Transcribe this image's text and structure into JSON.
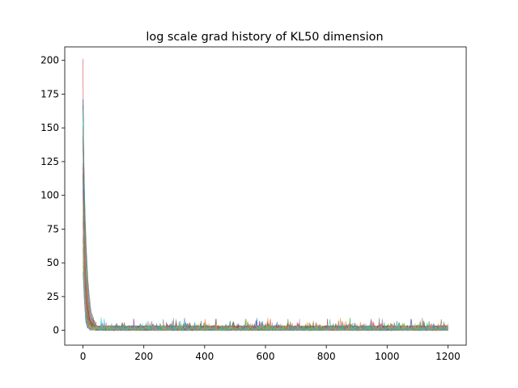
{
  "chart_data": {
    "type": "line",
    "title": "log scale grad history of KL50 dimension",
    "xlabel": "",
    "ylabel": "",
    "xlim": [
      -60,
      1260
    ],
    "ylim": [
      -11,
      210
    ],
    "x_ticks": [
      0,
      200,
      400,
      600,
      800,
      1000,
      1200
    ],
    "y_ticks": [
      0,
      25,
      50,
      75,
      100,
      125,
      150,
      175,
      200
    ],
    "x_tick_labels": [
      "0",
      "200",
      "400",
      "600",
      "800",
      "1000",
      "1200"
    ],
    "y_tick_labels": [
      "0",
      "25",
      "50",
      "75",
      "100",
      "125",
      "150",
      "175",
      "200"
    ],
    "grid": false,
    "legend": "none",
    "num_series": 50,
    "num_steps": 1201,
    "description_values": {
      "initial_max": 199,
      "secondary_peak": 48,
      "steady_state_range": [
        0,
        10
      ]
    },
    "series_colors": [
      "#1f77b4",
      "#ff7f0e",
      "#2ca02c",
      "#d62728",
      "#9467bd",
      "#8c564b",
      "#e377c2",
      "#7f7f7f",
      "#bcbd22",
      "#17becf"
    ]
  }
}
